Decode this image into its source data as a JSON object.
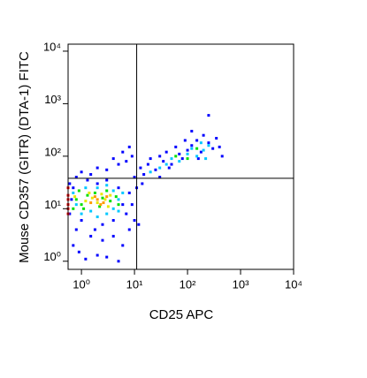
{
  "chart_data": {
    "type": "scatter",
    "x_label": "CD25 APC",
    "y_label": "Mouse CD357 (GITR) (DTA-1) FITC",
    "log_x": true,
    "log_y": true,
    "xlim": [
      0.56,
      10000
    ],
    "ylim": [
      0.7,
      13600
    ],
    "xticks": [
      {
        "value": 1,
        "label": "10⁰"
      },
      {
        "value": 10,
        "label": "10¹"
      },
      {
        "value": 100,
        "label": "10²"
      },
      {
        "value": 1000,
        "label": "10³"
      },
      {
        "value": 10000,
        "label": "10⁴"
      }
    ],
    "yticks": [
      {
        "value": 1,
        "label": "10⁰"
      },
      {
        "value": 10,
        "label": "10¹"
      },
      {
        "value": 100,
        "label": "10²"
      },
      {
        "value": 1000,
        "label": "10³"
      },
      {
        "value": 10000,
        "label": "10⁴"
      }
    ],
    "quadrant": {
      "x": 11,
      "y": 38,
      "color": "#000000"
    },
    "series": [
      {
        "color": "#0000ff",
        "x": [
          0.7,
          0.9,
          1.2,
          2,
          3,
          5,
          0.8,
          1.5,
          2.5,
          4,
          6,
          8,
          10,
          12,
          0.6,
          0.8,
          1,
          1.5,
          2,
          3,
          5,
          7,
          9,
          6,
          4,
          8,
          10,
          13,
          15,
          18,
          20,
          25,
          30,
          35,
          40,
          50,
          60,
          70,
          80,
          100,
          120,
          150,
          180,
          200,
          250,
          300,
          400,
          450,
          250,
          120,
          8,
          9,
          7,
          11,
          14,
          0.6,
          0.65,
          0.7,
          1,
          1.3,
          2,
          3,
          5,
          6,
          4,
          2.5,
          1.8,
          30,
          45,
          90,
          160,
          350
        ],
        "y": [
          2,
          1.5,
          1.1,
          1.3,
          1.2,
          1,
          4,
          3,
          2.5,
          3,
          2,
          4,
          6,
          5,
          30,
          40,
          50,
          45,
          60,
          55,
          70,
          80,
          100,
          120,
          90,
          150,
          40,
          60,
          45,
          70,
          90,
          55,
          100,
          80,
          120,
          70,
          150,
          110,
          90,
          130,
          160,
          200,
          120,
          250,
          180,
          140,
          150,
          100,
          600,
          300,
          20,
          12,
          8,
          25,
          30,
          8,
          15,
          25,
          6,
          35,
          30,
          35,
          25,
          12,
          6,
          5,
          4,
          40,
          60,
          200,
          90,
          220
        ]
      },
      {
        "color": "#00c8ff",
        "x": [
          1,
          1.5,
          2,
          3,
          4,
          5,
          6,
          1.2,
          2,
          3,
          0.8,
          0.7,
          4,
          5,
          30,
          50,
          70,
          100,
          150,
          200,
          250,
          120,
          40,
          180,
          20,
          220
        ],
        "y": [
          8,
          9,
          7,
          8,
          10,
          15,
          20,
          25,
          25,
          28,
          12,
          20,
          22,
          9,
          60,
          90,
          80,
          110,
          100,
          130,
          160,
          140,
          70,
          180,
          50,
          90
        ]
      },
      {
        "color": "#00e000",
        "x": [
          0.8,
          1,
          1.3,
          1.8,
          2.5,
          3.5,
          4.5,
          1.1,
          2.2,
          3,
          0.7,
          0.9,
          5,
          60,
          100,
          150
        ],
        "y": [
          15,
          12,
          18,
          20,
          16,
          14,
          17,
          10,
          11,
          22,
          10,
          22,
          12,
          100,
          90,
          140
        ]
      },
      {
        "color": "#e8e800",
        "x": [
          1.2,
          1.6,
          2,
          2.8,
          3.5,
          1.4,
          2.4,
          0.75,
          3.2
        ],
        "y": [
          14,
          16,
          13,
          15,
          18,
          20,
          19,
          17,
          11
        ]
      },
      {
        "color": "#ff9900",
        "x": [
          1.5,
          2,
          2.6,
          3,
          1.8,
          2.3
        ],
        "y": [
          13,
          15,
          13,
          17,
          17,
          12
        ]
      },
      {
        "color": "#ff0000",
        "x": [
          0.56,
          0.56,
          0.56,
          0.56,
          0.56,
          0.56
        ],
        "y": [
          8,
          12,
          18,
          25,
          15,
          10
        ]
      }
    ]
  }
}
